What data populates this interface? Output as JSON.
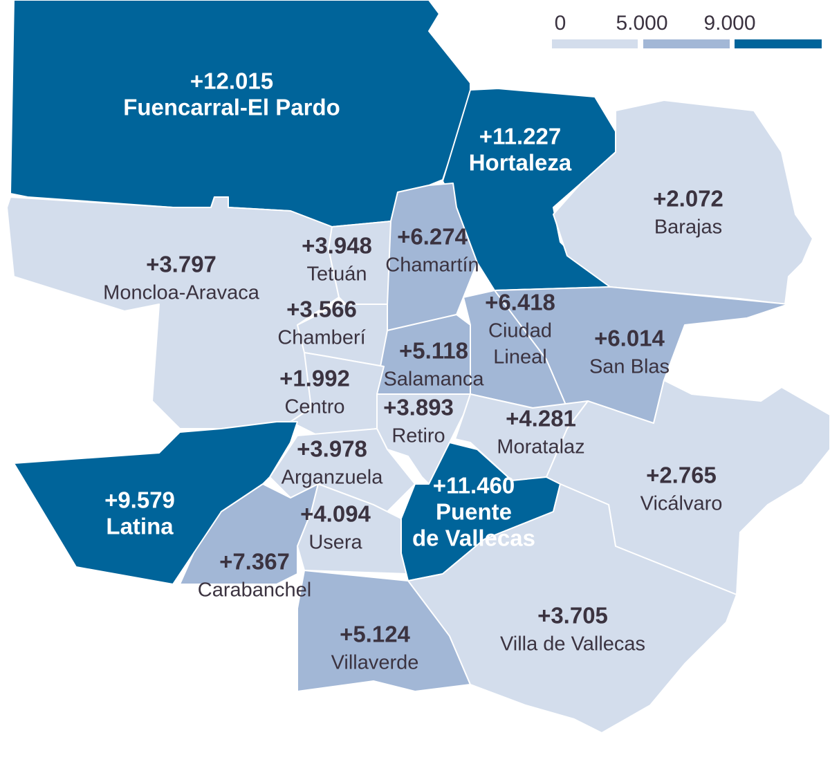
{
  "legend": {
    "ticks": [
      "0",
      "5.000",
      "9.000"
    ],
    "colors": [
      "#d3ddec",
      "#a2b7d6",
      "#00649a"
    ]
  },
  "districts": [
    {
      "value": "+12.015",
      "name": [
        "Fuencarral-El Pardo"
      ],
      "color": "#00649a"
    },
    {
      "value": "+11.227",
      "name": [
        "Hortaleza"
      ],
      "color": "#00649a"
    },
    {
      "value": "+2.072",
      "name": [
        "Barajas"
      ],
      "color": "#d3ddec"
    },
    {
      "value": "+3.797",
      "name": [
        "Moncloa-Aravaca"
      ],
      "color": "#d3ddec"
    },
    {
      "value": "+3.948",
      "name": [
        "Tetuán"
      ],
      "color": "#d3ddec"
    },
    {
      "value": "+6.274",
      "name": [
        "Chamartín"
      ],
      "color": "#a2b7d6"
    },
    {
      "value": "+3.566",
      "name": [
        "Chamberí"
      ],
      "color": "#d3ddec"
    },
    {
      "value": "+5.118",
      "name": [
        "Salamanca"
      ],
      "color": "#a2b7d6"
    },
    {
      "value": "+1.992",
      "name": [
        "Centro"
      ],
      "color": "#d3ddec"
    },
    {
      "value": "+6.418",
      "name": [
        "Ciudad",
        "Lineal"
      ],
      "color": "#a2b7d6"
    },
    {
      "value": "+6.014",
      "name": [
        "San Blas"
      ],
      "color": "#a2b7d6"
    },
    {
      "value": "+3.893",
      "name": [
        "Retiro"
      ],
      "color": "#d3ddec"
    },
    {
      "value": "+4.281",
      "name": [
        "Moratalaz"
      ],
      "color": "#d3ddec"
    },
    {
      "value": "+3.978",
      "name": [
        "Arganzuela"
      ],
      "color": "#d3ddec"
    },
    {
      "value": "+9.579",
      "name": [
        "Latina"
      ],
      "color": "#00649a"
    },
    {
      "value": "+7.367",
      "name": [
        "Carabanchel"
      ],
      "color": "#a2b7d6"
    },
    {
      "value": "+4.094",
      "name": [
        "Usera"
      ],
      "color": "#d3ddec"
    },
    {
      "value": "+11.460",
      "name": [
        "Puente",
        "de Vallecas"
      ],
      "color": "#00649a"
    },
    {
      "value": "+2.765",
      "name": [
        "Vicálvaro"
      ],
      "color": "#d3ddec"
    },
    {
      "value": "+5.124",
      "name": [
        "Villaverde"
      ],
      "color": "#a2b7d6"
    },
    {
      "value": "+3.705",
      "name": [
        "Villa de Vallecas"
      ],
      "color": "#d3ddec"
    }
  ]
}
